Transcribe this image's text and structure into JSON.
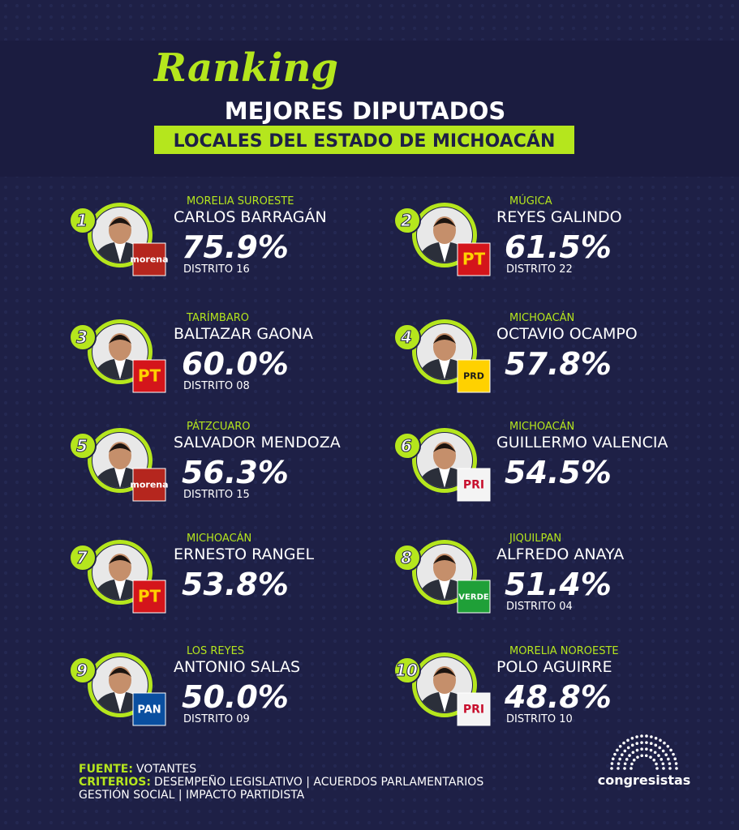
{
  "header": {
    "script": "Ranking",
    "title": "MEJORES DIPUTADOS",
    "subtitle": "LOCALES DEL ESTADO DE MICHOACÁN"
  },
  "entries": [
    {
      "rank": "1",
      "location": "MORELIA SUROESTE",
      "name": "CARLOS BARRAGÁN",
      "score": "75.9%",
      "district": "DISTRITO 16",
      "party": "morena"
    },
    {
      "rank": "2",
      "location": "MÚGICA",
      "name": "REYES GALINDO",
      "score": "61.5%",
      "district": "DISTRITO 22",
      "party": "PT"
    },
    {
      "rank": "3",
      "location": "TARÍMBARO",
      "name": "BALTAZAR GAONA",
      "score": "60.0%",
      "district": "DISTRITO 08",
      "party": "PT"
    },
    {
      "rank": "4",
      "location": "MICHOACÁN",
      "name": "OCTAVIO OCAMPO",
      "score": "57.8%",
      "party": "PRD"
    },
    {
      "rank": "5",
      "location": "PÁTZCUARO",
      "name": "SALVADOR MENDOZA",
      "score": "56.3%",
      "district": "DISTRITO 15",
      "party": "morena"
    },
    {
      "rank": "6",
      "location": "MICHOACÁN",
      "name": "GUILLERMO VALENCIA",
      "score": "54.5%",
      "party": "PRI"
    },
    {
      "rank": "7",
      "location": "MICHOACÁN",
      "name": "ERNESTO RANGEL",
      "score": "53.8%",
      "party": "PT"
    },
    {
      "rank": "8",
      "location": "JIQUILPAN",
      "name": "ALFREDO ANAYA",
      "score": "51.4%",
      "district": "DISTRITO 04",
      "party": "VERDE"
    },
    {
      "rank": "9",
      "location": "LOS REYES",
      "name": "ANTONIO SALAS",
      "score": "50.0%",
      "district": "DISTRITO 09",
      "party": "PAN"
    },
    {
      "rank": "10",
      "location": "MORELIA NOROESTE",
      "name": "POLO AGUIRRE",
      "score": "48.8%",
      "district": "DISTRITO 10",
      "party": "PRI"
    }
  ],
  "footer": {
    "source_label": "FUENTE:",
    "source": "VOTANTES",
    "criteria_label": "CRITERIOS:",
    "criteria_1": "DESEMPEÑO LEGISLATIVO | ACUERDOS PARLAMENTARIOS",
    "criteria_2": "GESTIÓN SOCIAL | IMPACTO PARTIDISTA",
    "brand": "congresistas"
  }
}
